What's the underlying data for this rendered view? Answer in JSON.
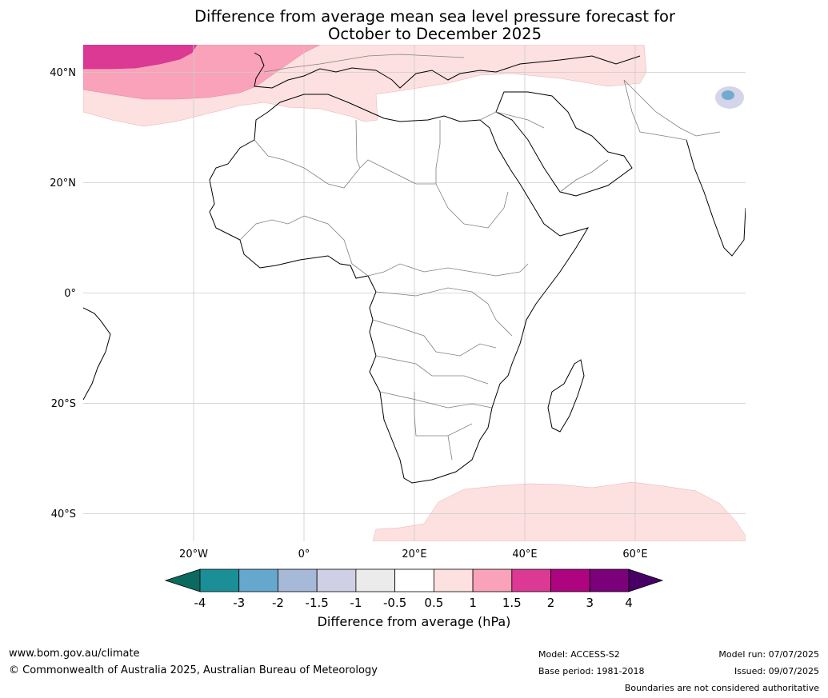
{
  "title_line1": "Difference from average mean sea level pressure forecast for",
  "title_line2": "October to December 2025",
  "map": {
    "lat_labels": [
      {
        "lat": 40,
        "label": "40°N"
      },
      {
        "lat": 20,
        "label": "20°N"
      },
      {
        "lat": 0,
        "label": "0°"
      },
      {
        "lat": -20,
        "label": "20°S"
      },
      {
        "lat": -40,
        "label": "40°S"
      }
    ],
    "lon_labels": [
      {
        "lon": -20,
        "label": "20°W"
      },
      {
        "lon": 0,
        "label": "0°"
      },
      {
        "lon": 20,
        "label": "20°E"
      },
      {
        "lon": 40,
        "label": "40°E"
      },
      {
        "lon": 60,
        "label": "60°E"
      }
    ],
    "extent": {
      "lon_min": -40,
      "lon_max": 80,
      "lat_min": -45,
      "lat_max": 45
    }
  },
  "colorbar": {
    "ticks": [
      "-4",
      "-3",
      "-2",
      "-1.5",
      "-1",
      "-0.5",
      "0.5",
      "1",
      "1.5",
      "2",
      "3",
      "4"
    ],
    "colors": [
      "#1b8f98",
      "#66a7cd",
      "#a6b9d9",
      "#cfd0e5",
      "#ebebeb",
      "#ffffff",
      "#fde0e0",
      "#f9a2b9",
      "#dc3995",
      "#ae0480",
      "#7a0179"
    ],
    "under_color": "#0a6a60",
    "over_color": "#490066",
    "label": "Difference from average (hPa)"
  },
  "footer": {
    "website": "www.bom.gov.au/climate",
    "copyright": "© Commonwealth of Australia 2025, Australian Bureau of Meteorology",
    "model": "Model: ACCESS-S2",
    "base_period": "Base period: 1981-2018",
    "model_run": "Model run: 07/07/2025",
    "issued": "Issued: 09/07/2025",
    "disclaimer": "Boundaries are not considered authoritative"
  }
}
